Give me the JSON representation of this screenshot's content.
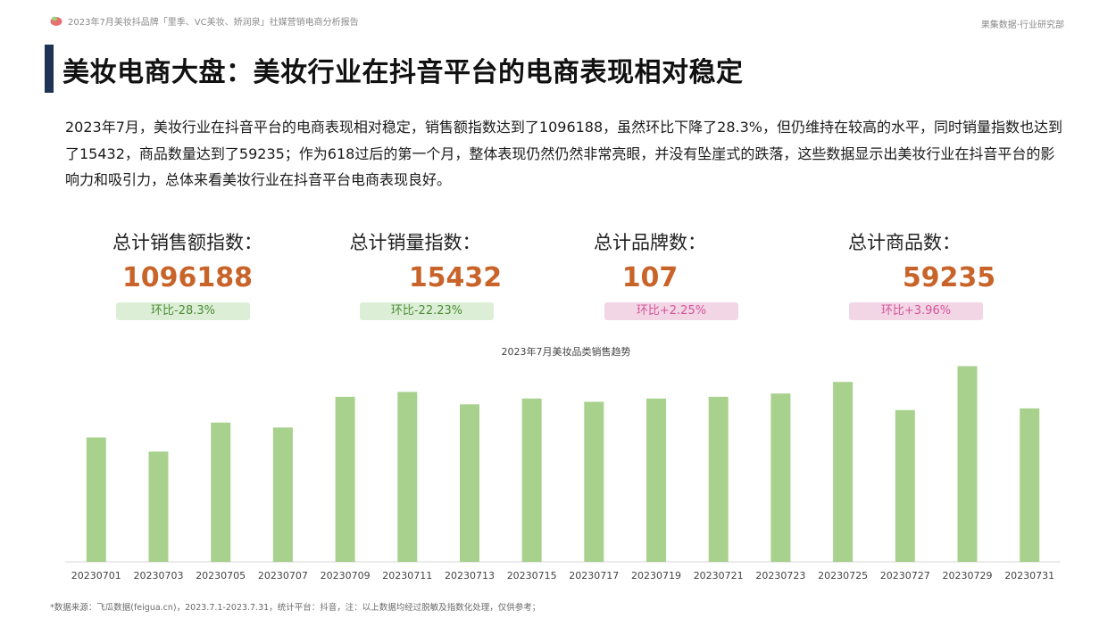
{
  "header": {
    "report_title": "2023年7月美妆抖品牌「里季、VC美妆、娇润泉」社媒营销电商分析报告",
    "org": "果集数据·行业研究部"
  },
  "page_title": "美妆电商大盘：美妆行业在抖音平台的电商表现相对稳定",
  "summary": "2023年7月，美妆行业在抖音平台的电商表现相对稳定，销售额指数达到了1096188，虽然环比下降了28.3%，但仍维持在较高的水平，同时销量指数也达到了15432，商品数量达到了59235；作为618过后的第一个月，整体表现仍然仍然非常亮眼，并没有坠崖式的跌落，这些数据显示出美妆行业在抖音平台的影响力和吸引力，总体来看美妆行业在抖音平台电商表现良好。",
  "kpis": [
    {
      "label": "总计销售额指数：",
      "value": "1096188",
      "change": "环比-28.3%",
      "trend": "down"
    },
    {
      "label": "总计销量指数：",
      "value": "15432",
      "change": "环比-22.23%",
      "trend": "down"
    },
    {
      "label": "总计品牌数：",
      "value": "107",
      "change": "环比+2.25%",
      "trend": "up"
    },
    {
      "label": "总计商品数：",
      "value": "59235",
      "change": "环比+3.96%",
      "trend": "up"
    }
  ],
  "colors": {
    "bar": "#a8d18d",
    "value": "#c8642a",
    "accent": "#1f3354"
  },
  "chart_data": {
    "type": "bar",
    "title": "2023年7月美妆品类销售趋势",
    "xlabel": "",
    "ylabel": "",
    "categories": [
      "20230701",
      "20230703",
      "20230705",
      "20230707",
      "20230709",
      "20230711",
      "20230713",
      "20230715",
      "20230717",
      "20230719",
      "20230721",
      "20230723",
      "20230725",
      "20230727",
      "20230729",
      "20230731"
    ],
    "values": [
      150,
      133,
      168,
      162,
      199,
      205,
      190,
      197,
      193,
      197,
      199,
      203,
      217,
      183,
      236,
      185
    ],
    "ylim": [
      0,
      250
    ],
    "grid": false,
    "legend": "none"
  },
  "footnote": "*数据来源：飞瓜数据(feigua.cn)，2023.7.1-2023.7.31，统计平台：抖音，注：以上数据均经过脱敏及指数化处理，仅供参考；"
}
